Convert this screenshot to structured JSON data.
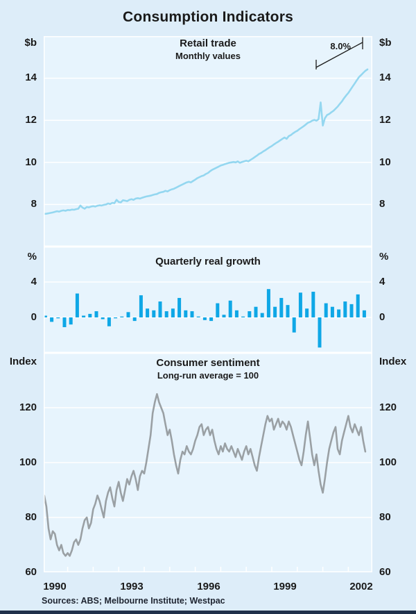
{
  "title": "Consumption Indicators",
  "sources": "Sources: ABS; Melbourne Institute; Westpac",
  "colors": {
    "page_background": "#ddedf9",
    "plot_background": "#e7f4fd",
    "gridline": "#ffffff",
    "retail_line": "#94d7f0",
    "growth_bar": "#0fa7e6",
    "sentiment_line": "#9aa0a4",
    "text": "#1a1a1a",
    "bottom_strip": "#20304a"
  },
  "panels": [
    {
      "title": "Retail trade",
      "subtitle": "Monthly values",
      "unit_left": "$b",
      "unit_right": "$b",
      "yticks": [
        "14",
        "12",
        "10",
        "8"
      ],
      "annotation": "8.0%"
    },
    {
      "title": "Quarterly real growth",
      "unit_left": "%",
      "unit_right": "%",
      "yticks": [
        "4",
        "0"
      ]
    },
    {
      "title": "Consumer sentiment",
      "subtitle": "Long-run average = 100",
      "unit_left": "Index",
      "unit_right": "Index",
      "yticks": [
        "120",
        "100",
        "80",
        "60"
      ]
    }
  ],
  "x_axis": {
    "labels": [
      "1990",
      "1993",
      "1996",
      "1999",
      "2002"
    ],
    "label_years": [
      1990,
      1993,
      1996,
      1999,
      2002
    ],
    "tick_years_start": 1990.5,
    "tick_years_end": 2001.5,
    "xlim": [
      1989.56,
      2002.44
    ]
  },
  "chart_data": [
    {
      "type": "line",
      "title": "Retail trade",
      "subtitle": "Monthly values",
      "ylabel": "$b",
      "ylim": [
        6,
        16
      ],
      "gridlines": [
        8,
        10,
        12,
        14
      ],
      "x_start": 1989.583,
      "x_step": 0.08333,
      "annotation": {
        "label": "8.0%",
        "meaning": "growth rate marker"
      },
      "values": [
        7.55,
        7.56,
        7.58,
        7.6,
        7.62,
        7.65,
        7.68,
        7.66,
        7.7,
        7.72,
        7.7,
        7.74,
        7.73,
        7.76,
        7.75,
        7.78,
        7.8,
        7.95,
        7.85,
        7.8,
        7.88,
        7.86,
        7.9,
        7.92,
        7.9,
        7.94,
        7.96,
        7.95,
        7.98,
        8.0,
        8.05,
        8.02,
        8.08,
        8.06,
        8.22,
        8.12,
        8.1,
        8.2,
        8.18,
        8.16,
        8.22,
        8.25,
        8.22,
        8.28,
        8.3,
        8.28,
        8.32,
        8.35,
        8.38,
        8.4,
        8.42,
        8.45,
        8.48,
        8.5,
        8.55,
        8.58,
        8.6,
        8.65,
        8.62,
        8.68,
        8.72,
        8.75,
        8.8,
        8.85,
        8.9,
        8.95,
        9.0,
        9.05,
        9.08,
        9.05,
        9.12,
        9.18,
        9.25,
        9.3,
        9.35,
        9.38,
        9.45,
        9.5,
        9.58,
        9.65,
        9.7,
        9.75,
        9.8,
        9.85,
        9.88,
        9.92,
        9.95,
        9.98,
        10.0,
        10.02,
        10.0,
        10.05,
        9.98,
        10.02,
        10.05,
        10.08,
        10.05,
        10.12,
        10.18,
        10.25,
        10.32,
        10.4,
        10.45,
        10.52,
        10.58,
        10.65,
        10.72,
        10.78,
        10.85,
        10.92,
        10.98,
        11.05,
        11.12,
        11.18,
        11.12,
        11.25,
        11.3,
        11.38,
        11.45,
        11.5,
        11.58,
        11.65,
        11.72,
        11.8,
        11.88,
        11.92,
        11.98,
        12.02,
        11.98,
        12.05,
        12.85,
        11.75,
        12.1,
        12.25,
        12.3,
        12.38,
        12.45,
        12.55,
        12.65,
        12.78,
        12.9,
        13.05,
        13.18,
        13.3,
        13.45,
        13.6,
        13.75,
        13.9,
        14.05,
        14.15,
        14.25,
        14.35,
        14.42
      ]
    },
    {
      "type": "bar",
      "title": "Quarterly real growth",
      "ylabel": "%",
      "ylim": [
        -4,
        8
      ],
      "gridlines": [
        0,
        4
      ],
      "x_start": 1989.625,
      "x_step": 0.25,
      "values": [
        0.2,
        -0.5,
        -0.1,
        -1.1,
        -0.8,
        2.7,
        0.2,
        0.4,
        0.7,
        -0.2,
        -1.0,
        -0.1,
        0.1,
        0.6,
        -0.4,
        2.5,
        1.0,
        0.8,
        1.8,
        0.7,
        1.0,
        2.2,
        0.8,
        0.7,
        0.1,
        -0.3,
        -0.4,
        1.6,
        0.3,
        1.9,
        0.8,
        0.1,
        0.7,
        1.2,
        0.5,
        3.2,
        1.2,
        2.2,
        1.4,
        -1.7,
        2.8,
        1.0,
        2.9,
        -3.4,
        1.6,
        1.2,
        0.9,
        1.8,
        1.5,
        2.6,
        0.8
      ]
    },
    {
      "type": "line",
      "title": "Consumer sentiment",
      "subtitle": "Long-run average = 100",
      "ylabel": "Index",
      "ylim": [
        60,
        140
      ],
      "gridlines": [
        80,
        100,
        120
      ],
      "x_start": 1989.583,
      "x_step": 0.08333,
      "values": [
        88,
        84,
        76,
        72,
        75,
        74,
        70,
        68,
        70,
        67,
        66,
        67,
        66,
        68,
        71,
        72,
        70,
        72,
        76,
        79,
        80,
        76,
        78,
        83,
        85,
        88,
        86,
        83,
        80,
        86,
        89,
        91,
        87,
        84,
        90,
        93,
        89,
        86,
        90,
        94,
        92,
        95,
        97,
        94,
        90,
        95,
        97,
        96,
        100,
        105,
        110,
        118,
        122,
        125,
        122,
        120,
        118,
        114,
        110,
        112,
        108,
        103,
        99,
        96,
        101,
        104,
        103,
        106,
        104,
        103,
        105,
        108,
        110,
        113,
        114,
        110,
        112,
        113,
        110,
        112,
        108,
        105,
        103,
        106,
        104,
        107,
        105,
        104,
        106,
        104,
        102,
        105,
        103,
        101,
        104,
        106,
        103,
        105,
        102,
        99,
        97,
        102,
        106,
        110,
        114,
        117,
        115,
        116,
        112,
        114,
        116,
        113,
        115,
        114,
        112,
        115,
        113,
        110,
        107,
        104,
        101,
        99,
        104,
        110,
        115,
        109,
        103,
        99,
        103,
        97,
        92,
        89,
        94,
        100,
        105,
        108,
        111,
        113,
        105,
        103,
        108,
        111,
        114,
        117,
        113,
        111,
        114,
        112,
        110,
        113,
        108,
        104
      ]
    }
  ]
}
